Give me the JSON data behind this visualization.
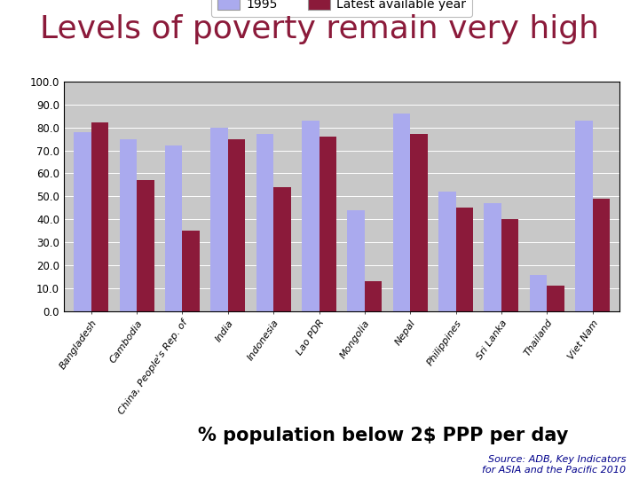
{
  "title": "Levels of poverty remain very high",
  "title_color": "#8B1A3A",
  "legend_labels": [
    "1995",
    "Latest available year"
  ],
  "categories": [
    "Bangladesh",
    "Cambodia",
    "China, People's Rep. of",
    "India",
    "Indonesia",
    "Lao PDR",
    "Mongolia",
    "Nepal",
    "Philippines",
    "Sri Lanka",
    "Thailand",
    "Viet Nam"
  ],
  "values_1995": [
    78,
    75,
    72,
    80,
    77,
    83,
    44,
    86,
    52,
    47,
    16,
    83
  ],
  "values_latest": [
    82,
    57,
    35,
    75,
    54,
    76,
    13,
    77,
    45,
    40,
    11,
    49
  ],
  "ylim": [
    0,
    100
  ],
  "yticks": [
    0.0,
    10.0,
    20.0,
    30.0,
    40.0,
    50.0,
    60.0,
    70.0,
    80.0,
    90.0,
    100.0
  ],
  "color_1995": "#AAAAEE",
  "color_latest": "#8B1A3A",
  "plot_bg": "#C8C8C8",
  "source_text": "Source: ADB, Key Indicators\nfor ASIA and the Pacific 2010",
  "source_color": "#00008B",
  "xlabel": "% population below 2$ PPP per day",
  "xlabel_fontsize": 15,
  "title_fontsize": 26,
  "grid_color": "#888888"
}
